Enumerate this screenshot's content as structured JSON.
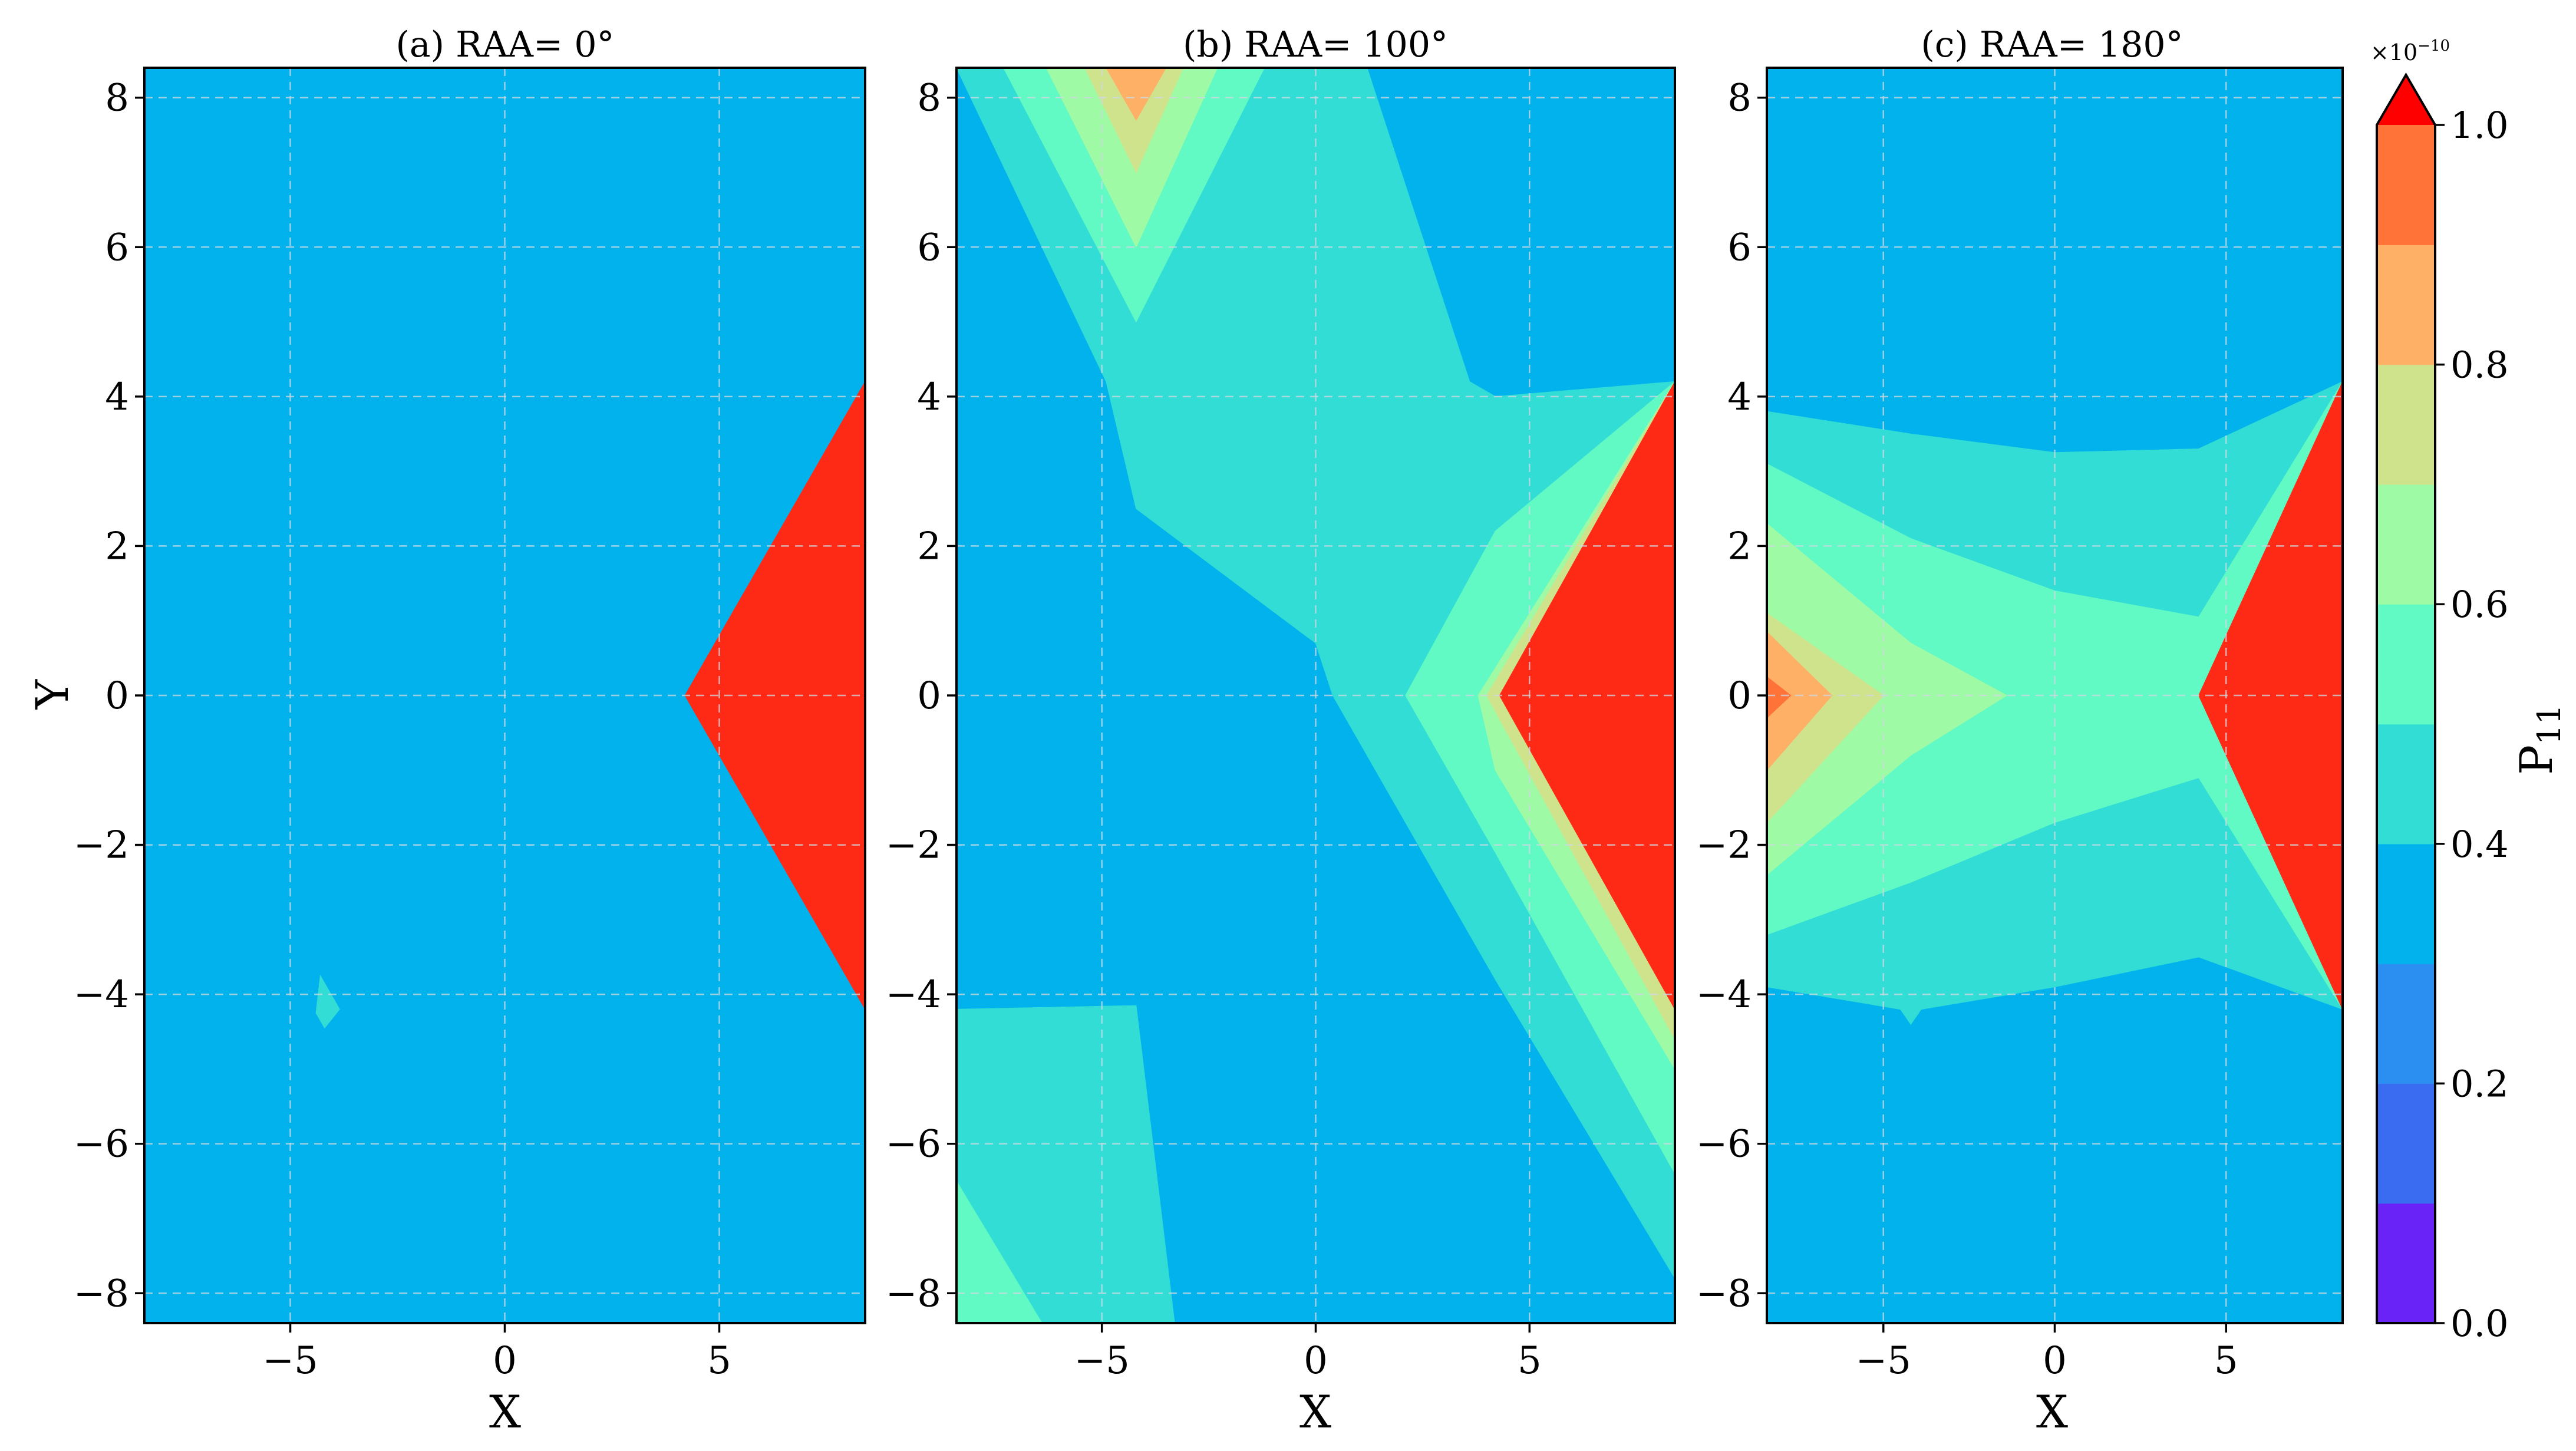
{
  "chart_data": [
    {
      "type": "contour",
      "title": "(a) RAA= 0°",
      "xlabel": "X",
      "ylabel": "Y",
      "xlim": [
        -8.4,
        8.4
      ],
      "ylim": [
        -8.4,
        8.4
      ],
      "xticks": [
        -5,
        0,
        5
      ],
      "yticks": [
        -8,
        -6,
        -4,
        -2,
        0,
        2,
        4,
        6,
        8
      ],
      "grid": true,
      "background_level": 0.3,
      "regions": [
        {
          "level": 0.4,
          "polygon": [
            [
              -4.3,
              -3.75
            ],
            [
              -3.85,
              -4.2
            ],
            [
              -4.2,
              -4.45
            ],
            [
              -4.4,
              -4.25
            ]
          ]
        },
        {
          "level": 1.0,
          "polygon": [
            [
              4.2,
              0
            ],
            [
              8.4,
              4.2
            ],
            [
              8.4,
              -4.2
            ]
          ]
        }
      ]
    },
    {
      "type": "contour",
      "title": "(b) RAA= 100°",
      "xlabel": "X",
      "ylabel": "",
      "xlim": [
        -8.4,
        8.4
      ],
      "ylim": [
        -8.4,
        8.4
      ],
      "xticks": [
        -5,
        0,
        5
      ],
      "yticks": [
        -8,
        -6,
        -4,
        -2,
        0,
        2,
        4,
        6,
        8
      ],
      "grid": true,
      "background_level": 0.3,
      "regions": [
        {
          "level": 0.4,
          "polygon": [
            [
              -8.4,
              8.4
            ],
            [
              1.2,
              8.4
            ],
            [
              3.6,
              4.2
            ],
            [
              4.2,
              4.0
            ],
            [
              8.4,
              4.2
            ],
            [
              8.4,
              -7.8
            ],
            [
              4.2,
              -3.8
            ],
            [
              0.4,
              0
            ],
            [
              0,
              0.7
            ],
            [
              -4.2,
              2.5
            ],
            [
              -4.9,
              4.2
            ],
            [
              -8.4,
              8.4
            ]
          ]
        },
        {
          "level": 0.4,
          "polygon": [
            [
              -8.4,
              -4.2
            ],
            [
              -4.2,
              -4.15
            ],
            [
              -3.3,
              -8.4
            ],
            [
              -8.4,
              -8.4
            ]
          ]
        },
        {
          "level": 0.5,
          "polygon": [
            [
              -7.3,
              8.4
            ],
            [
              -1.2,
              8.4
            ],
            [
              -4.2,
              5.0
            ]
          ]
        },
        {
          "level": 0.5,
          "polygon": [
            [
              2.1,
              0
            ],
            [
              4.2,
              2.2
            ],
            [
              8.4,
              4.2
            ],
            [
              8.4,
              -6.4
            ],
            [
              4.2,
              -2.1
            ]
          ]
        },
        {
          "level": 0.5,
          "polygon": [
            [
              -8.4,
              -6.5
            ],
            [
              -6.4,
              -8.4
            ],
            [
              -8.4,
              -8.4
            ]
          ]
        },
        {
          "level": 0.6,
          "polygon": [
            [
              -6.3,
              8.4
            ],
            [
              -2.3,
              8.4
            ],
            [
              -4.2,
              6.0
            ]
          ]
        },
        {
          "level": 0.6,
          "polygon": [
            [
              3.8,
              0
            ],
            [
              8.4,
              4.2
            ],
            [
              8.4,
              -5.0
            ],
            [
              4.2,
              -1.0
            ]
          ]
        },
        {
          "level": 0.7,
          "polygon": [
            [
              -5.4,
              8.4
            ],
            [
              -3.1,
              8.4
            ],
            [
              -4.2,
              7.0
            ]
          ]
        },
        {
          "level": 0.7,
          "polygon": [
            [
              4.0,
              0
            ],
            [
              8.4,
              4.2
            ],
            [
              8.4,
              -4.6
            ]
          ]
        },
        {
          "level": 0.8,
          "polygon": [
            [
              -4.9,
              8.4
            ],
            [
              -3.5,
              8.4
            ],
            [
              -4.2,
              7.7
            ]
          ]
        },
        {
          "level": 1.0,
          "polygon": [
            [
              4.3,
              0
            ],
            [
              8.4,
              4.2
            ],
            [
              8.4,
              -4.2
            ]
          ]
        }
      ]
    },
    {
      "type": "contour",
      "title": "(c) RAA= 180°",
      "xlabel": "X",
      "ylabel": "",
      "xlim": [
        -8.4,
        8.4
      ],
      "ylim": [
        -8.4,
        8.4
      ],
      "xticks": [
        -5,
        0,
        5
      ],
      "yticks": [
        -8,
        -6,
        -4,
        -2,
        0,
        2,
        4,
        6,
        8
      ],
      "grid": true,
      "background_level": 0.3,
      "regions": [
        {
          "level": 0.4,
          "polygon": [
            [
              -8.4,
              3.8
            ],
            [
              -4.2,
              3.5
            ],
            [
              0,
              3.25
            ],
            [
              4.2,
              3.3
            ],
            [
              8.4,
              4.2
            ],
            [
              8.4,
              -4.2
            ],
            [
              4.2,
              -3.5
            ],
            [
              0,
              -3.9
            ],
            [
              -3.9,
              -4.2
            ],
            [
              -4.2,
              -4.4
            ],
            [
              -4.5,
              -4.2
            ],
            [
              -8.4,
              -3.9
            ]
          ]
        },
        {
          "level": 0.5,
          "polygon": [
            [
              -8.4,
              3.1
            ],
            [
              -4.2,
              2.1
            ],
            [
              0,
              1.4
            ],
            [
              4.2,
              1.05
            ],
            [
              8.4,
              4.2
            ],
            [
              8.4,
              -4.2
            ],
            [
              4.2,
              -1.1
            ],
            [
              0,
              -1.7
            ],
            [
              -4.2,
              -2.5
            ],
            [
              -8.4,
              -3.2
            ]
          ]
        },
        {
          "level": 0.6,
          "polygon": [
            [
              -8.4,
              2.3
            ],
            [
              -4.2,
              0.7
            ],
            [
              -1.4,
              0
            ],
            [
              -4.2,
              -0.8
            ],
            [
              -8.4,
              -2.4
            ]
          ]
        },
        {
          "level": 0.7,
          "polygon": [
            [
              -8.4,
              1.1
            ],
            [
              -5.0,
              0
            ],
            [
              -8.4,
              -1.7
            ]
          ]
        },
        {
          "level": 0.8,
          "polygon": [
            [
              -8.4,
              0.85
            ],
            [
              -6.5,
              0
            ],
            [
              -8.4,
              -1.0
            ]
          ]
        },
        {
          "level": 0.9,
          "polygon": [
            [
              -8.4,
              0.25
            ],
            [
              -7.7,
              0
            ],
            [
              -8.4,
              -0.3
            ]
          ]
        },
        {
          "level": 1.0,
          "polygon": [
            [
              4.2,
              0
            ],
            [
              8.4,
              4.2
            ],
            [
              8.4,
              -4.2
            ]
          ]
        }
      ]
    }
  ],
  "colorbar": {
    "label_main": "P",
    "label_sub": "11",
    "multiplier_base": "×10",
    "multiplier_exp": "−10",
    "range": [
      0.0,
      1.0
    ],
    "levels": [
      0.0,
      0.1,
      0.2,
      0.3,
      0.4,
      0.5,
      0.6,
      0.7,
      0.8,
      0.9,
      1.0
    ],
    "ticks": [
      "0.0",
      "0.2",
      "0.4",
      "0.6",
      "0.8",
      "1.0"
    ],
    "colors": [
      "#6a23f7",
      "#3a6cf2",
      "#2a8ff0",
      "#02b2ed",
      "#31ddd5",
      "#61f9c4",
      "#9ffaa5",
      "#cfe38c",
      "#fdb066",
      "#ff7238",
      "#ff2a15"
    ],
    "extend_color": "#ff0000"
  }
}
